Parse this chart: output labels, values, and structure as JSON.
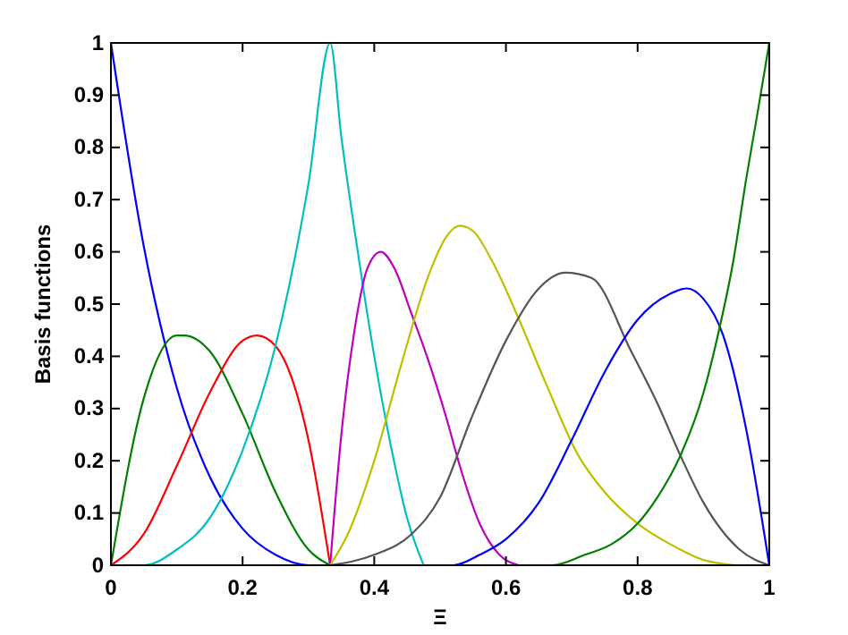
{
  "chart_data": {
    "type": "line",
    "xlabel": "Ξ",
    "ylabel": "Basis functions",
    "xlim": [
      0,
      1
    ],
    "ylim": [
      0,
      1
    ],
    "xticks": [
      0,
      0.2,
      0.4,
      0.6,
      0.8,
      1
    ],
    "yticks": [
      0,
      0.1,
      0.2,
      0.3,
      0.4,
      0.5,
      0.6,
      0.7,
      0.8,
      0.9,
      1
    ],
    "grid": false,
    "marker": "none",
    "line_style": "solid",
    "series": [
      {
        "color": "#0000ff",
        "x": [
          0,
          0.05,
          0.1,
          0.15,
          0.2,
          0.25,
          0.3,
          0.333
        ],
        "values": [
          1,
          0.61,
          0.34,
          0.17,
          0.07,
          0.02,
          0,
          0
        ]
      },
      {
        "color": "#007f00",
        "x": [
          0,
          0.05,
          0.1,
          0.111,
          0.15,
          0.2,
          0.25,
          0.3,
          0.333
        ],
        "values": [
          0,
          0.32,
          0.44,
          0.44,
          0.41,
          0.29,
          0.14,
          0.03,
          0
        ]
      },
      {
        "color": "#ff0000",
        "x": [
          0,
          0.05,
          0.1,
          0.15,
          0.2,
          0.222,
          0.25,
          0.3,
          0.333
        ],
        "values": [
          0,
          0.06,
          0.19,
          0.33,
          0.43,
          0.44,
          0.42,
          0.24,
          0
        ]
      },
      {
        "color": "#00bfbf",
        "x": [
          0,
          0.05,
          0.1,
          0.15,
          0.2,
          0.25,
          0.3,
          0.333,
          0.35,
          0.375,
          0.4,
          0.425,
          0.45,
          0.475
        ],
        "values": [
          0,
          0,
          0.03,
          0.09,
          0.22,
          0.42,
          0.73,
          1,
          0.82,
          0.6,
          0.4,
          0.23,
          0.09,
          0
        ]
      },
      {
        "color": "#bf00bf",
        "x": [
          0.333,
          0.35,
          0.37,
          0.39,
          0.41,
          0.43,
          0.457,
          0.48,
          0.51,
          0.53,
          0.56,
          0.59,
          0.62
        ],
        "values": [
          0,
          0.25,
          0.45,
          0.57,
          0.6,
          0.57,
          0.48,
          0.4,
          0.28,
          0.19,
          0.08,
          0.02,
          0
        ]
      },
      {
        "color": "#bfbf00",
        "x": [
          0.333,
          0.36,
          0.4,
          0.44,
          0.484,
          0.51,
          0.53,
          0.55,
          0.58,
          0.62,
          0.66,
          0.71,
          0.75,
          0.8,
          0.85,
          0.9,
          0.95
        ],
        "values": [
          0,
          0.06,
          0.2,
          0.38,
          0.56,
          0.63,
          0.65,
          0.64,
          0.58,
          0.47,
          0.35,
          0.21,
          0.14,
          0.08,
          0.04,
          0.01,
          0
        ]
      },
      {
        "color": "#555555",
        "x": [
          0.333,
          0.4,
          0.457,
          0.5,
          0.547,
          0.6,
          0.65,
          0.69,
          0.73,
          0.79,
          0.83,
          0.865,
          0.9,
          0.955,
          1
        ],
        "values": [
          0,
          0.02,
          0.06,
          0.13,
          0.28,
          0.43,
          0.53,
          0.56,
          0.55,
          0.41,
          0.31,
          0.21,
          0.12,
          0.03,
          0
        ]
      },
      {
        "color": "#0000ff",
        "x": [
          0.475,
          0.52,
          0.56,
          0.6,
          0.65,
          0.7,
          0.75,
          0.8,
          0.85,
          0.875,
          0.9,
          0.93,
          0.965,
          1
        ],
        "values": [
          0,
          0,
          0.02,
          0.05,
          0.12,
          0.24,
          0.37,
          0.47,
          0.52,
          0.53,
          0.51,
          0.44,
          0.26,
          0
        ]
      },
      {
        "color": "#007f00",
        "x": [
          0.62,
          0.67,
          0.72,
          0.76,
          0.8,
          0.83,
          0.865,
          0.9,
          0.92,
          0.945,
          0.965,
          0.98,
          1
        ],
        "values": [
          0,
          0,
          0.02,
          0.04,
          0.08,
          0.13,
          0.21,
          0.33,
          0.43,
          0.58,
          0.74,
          0.85,
          1
        ]
      }
    ]
  }
}
